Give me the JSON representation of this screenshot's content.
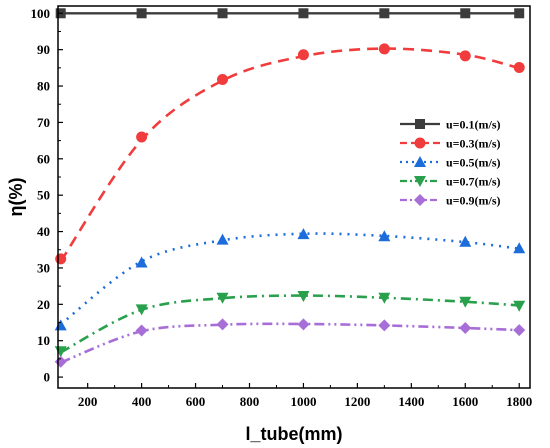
{
  "chart_data": {
    "type": "line",
    "title": "",
    "xlabel": "l_tube(mm)",
    "ylabel": "η(%)",
    "xlim": [
      90,
      1840
    ],
    "ylim": [
      -3,
      102
    ],
    "xticks": [
      200,
      400,
      600,
      800,
      1000,
      1200,
      1400,
      1600,
      1800
    ],
    "yticks": [
      0,
      10,
      20,
      30,
      40,
      50,
      60,
      70,
      80,
      90,
      100
    ],
    "grid": false,
    "legend_position": "right",
    "x": [
      100,
      400,
      700,
      1000,
      1300,
      1600,
      1800
    ],
    "series": [
      {
        "name": "u=0.1(m/s)",
        "color": "#3c3c3c",
        "marker": "square",
        "line_style": "solid",
        "values": [
          100,
          100,
          100,
          100,
          100,
          100,
          100
        ],
        "trend": [
          100,
          100,
          100,
          100,
          100,
          100,
          100
        ]
      },
      {
        "name": "u=0.3(m/s)",
        "color": "#f03c3c",
        "marker": "circle",
        "line_style": "dash",
        "values": [
          32.5,
          66,
          81.8,
          88.6,
          90.2,
          88.3,
          85.1
        ],
        "trend": [
          31.8,
          65.2,
          81.5,
          88.2,
          90.3,
          88.6,
          84.9
        ]
      },
      {
        "name": "u=0.5(m/s)",
        "color": "#1c6cdc",
        "marker": "triangle-up",
        "line_style": "dot",
        "values": [
          14.2,
          31.5,
          37.8,
          39.3,
          38.7,
          37.2,
          35.4
        ],
        "trend": [
          14.5,
          31.8,
          37.6,
          39.4,
          38.8,
          37.1,
          35.3
        ]
      },
      {
        "name": "u=0.7(m/s)",
        "color": "#28a04c",
        "marker": "triangle-down",
        "line_style": "dashdot",
        "values": [
          7.1,
          18.6,
          21.8,
          22.3,
          21.8,
          20.7,
          19.6
        ],
        "trend": [
          6.8,
          18.5,
          21.7,
          22.4,
          21.8,
          20.7,
          19.7
        ]
      },
      {
        "name": "u=0.9(m/s)",
        "color": "#a86ed8",
        "marker": "diamond",
        "line_style": "dashdotdot",
        "values": [
          4.2,
          12.8,
          14.5,
          14.5,
          14.2,
          13.5,
          12.9
        ],
        "trend": [
          4.0,
          12.6,
          14.4,
          14.6,
          14.2,
          13.5,
          12.9
        ]
      }
    ]
  }
}
